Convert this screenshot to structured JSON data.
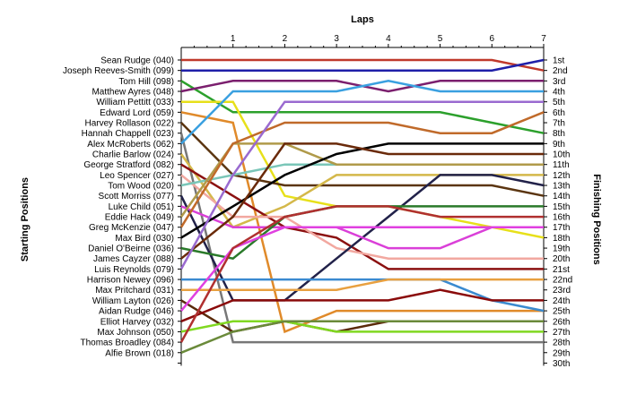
{
  "chart_data": {
    "type": "line",
    "title": "",
    "top_axis_label": "Laps",
    "left_axis_label": "Starting Positions",
    "right_axis_label": "Finishing Positions",
    "x": [
      0,
      1,
      2,
      3,
      4,
      5,
      6,
      7
    ],
    "x_tick_labels": [
      "1",
      "2",
      "3",
      "4",
      "5",
      "6",
      "7"
    ],
    "finishing_labels": [
      "1st",
      "2nd",
      "3rd",
      "4th",
      "5th",
      "6th",
      "7th",
      "8th",
      "9th",
      "10th",
      "11th",
      "12th",
      "13th",
      "14th",
      "15th",
      "16th",
      "17th",
      "18th",
      "19th",
      "20th",
      "21st",
      "22nd",
      "23rd",
      "24th",
      "25th",
      "26th",
      "27th",
      "28th",
      "29th",
      "30th"
    ],
    "ylim": [
      1,
      30
    ],
    "series": [
      {
        "name": "Sean Rudge (040)",
        "color": "#c0392b",
        "positions": [
          1,
          1,
          1,
          1,
          1,
          1,
          1,
          2
        ]
      },
      {
        "name": "Joseph Reeves-Smith (099)",
        "color": "#1f1fa8",
        "positions": [
          2,
          2,
          2,
          2,
          2,
          2,
          2,
          1
        ]
      },
      {
        "name": "Tom Hill (098)",
        "color": "#2ca02c",
        "positions": [
          3,
          6,
          6,
          6,
          6,
          6,
          7,
          8
        ]
      },
      {
        "name": "Matthew Ayres (048)",
        "color": "#7b1f6e",
        "positions": [
          4,
          3,
          3,
          3,
          4,
          3,
          3,
          3
        ]
      },
      {
        "name": "William Pettitt (033)",
        "color": "#e7e01a",
        "positions": [
          5,
          5,
          14,
          15,
          15,
          16,
          17,
          18
        ]
      },
      {
        "name": "Edward Lord (059)",
        "color": "#e08a2a",
        "positions": [
          6,
          7,
          27,
          25,
          25,
          25,
          25,
          25
        ]
      },
      {
        "name": "Harvey Rollason (022)",
        "color": "#5b3510",
        "positions": [
          7,
          12,
          13,
          13,
          13,
          13,
          13,
          14
        ]
      },
      {
        "name": "Hannah Chappell (023)",
        "color": "#777777",
        "positions": [
          8,
          28,
          28,
          28,
          28,
          28,
          28,
          28
        ]
      },
      {
        "name": "Alex McRoberts (062)",
        "color": "#3aa0e0",
        "positions": [
          9,
          4,
          4,
          4,
          3,
          4,
          4,
          4
        ]
      },
      {
        "name": "Charlie Barlow (024)",
        "color": "#d4b84a",
        "positions": [
          10,
          17,
          15,
          12,
          12,
          12,
          12,
          12
        ]
      },
      {
        "name": "George Stratford (082)",
        "color": "#8b1010",
        "positions": [
          11,
          14,
          17,
          18,
          21,
          21,
          21,
          21
        ]
      },
      {
        "name": "Leo Spencer (027)",
        "color": "#f2a8a0",
        "positions": [
          12,
          16,
          16,
          19,
          20,
          20,
          20,
          20
        ]
      },
      {
        "name": "Tom Wood (020)",
        "color": "#7ac6b8",
        "positions": [
          13,
          12,
          11,
          11,
          11,
          11,
          11,
          11
        ]
      },
      {
        "name": "Scott Morriss (077)",
        "color": "#22224a",
        "positions": [
          14,
          24,
          24,
          20,
          16,
          12,
          12,
          13
        ]
      },
      {
        "name": "Luke Child (051)",
        "color": "#da3fd8",
        "positions": [
          15,
          17,
          17,
          17,
          19,
          19,
          17,
          17
        ]
      },
      {
        "name": "Eddie Hack (049)",
        "color": "#b09a4a",
        "positions": [
          16,
          9,
          9,
          11,
          11,
          11,
          11,
          11
        ]
      },
      {
        "name": "Greg McKenzie (047)",
        "color": "#c06a2a",
        "positions": [
          17,
          9,
          7,
          7,
          7,
          8,
          8,
          6
        ]
      },
      {
        "name": "Max Bird (030)",
        "color": "#000000",
        "positions": [
          18,
          15,
          12,
          10,
          9,
          9,
          9,
          9
        ]
      },
      {
        "name": "Daniel O'Beirne (036)",
        "color": "#2a7a2a",
        "positions": [
          19,
          20,
          16,
          15,
          15,
          15,
          15,
          15
        ]
      },
      {
        "name": "James Cayzer (088)",
        "color": "#6a2a0a",
        "positions": [
          20,
          16,
          9,
          9,
          10,
          10,
          10,
          10
        ]
      },
      {
        "name": "Luis Reynolds (079)",
        "color": "#9a6ad0",
        "positions": [
          21,
          12,
          5,
          5,
          5,
          5,
          5,
          5
        ]
      },
      {
        "name": "Harrison Newey (096)",
        "color": "#3a8ad0",
        "positions": [
          22,
          22,
          22,
          22,
          22,
          22,
          24,
          25
        ]
      },
      {
        "name": "Max Pritchard (031)",
        "color": "#e8a040",
        "positions": [
          23,
          23,
          23,
          23,
          22,
          22,
          22,
          22
        ]
      },
      {
        "name": "William Layton (026)",
        "color": "#5a2a0a",
        "positions": [
          24,
          27,
          26,
          27,
          26,
          26,
          26,
          26
        ]
      },
      {
        "name": "Aidan Rudge (046)",
        "color": "#e040e0",
        "positions": [
          25,
          19,
          17,
          17,
          17,
          17,
          17,
          17
        ]
      },
      {
        "name": "Elliot Harvey (032)",
        "color": "#8a0a0a",
        "positions": [
          26,
          24,
          24,
          24,
          24,
          23,
          24,
          24
        ]
      },
      {
        "name": "Max Johnson (050)",
        "color": "#80d820",
        "positions": [
          27,
          26,
          26,
          27,
          27,
          27,
          27,
          27
        ]
      },
      {
        "name": "Thomas Broadley (084)",
        "color": "#b03030",
        "positions": [
          28,
          19,
          16,
          15,
          15,
          16,
          16,
          16
        ]
      },
      {
        "name": "Alfie Brown (018)",
        "color": "#6a8a3a",
        "positions": [
          29,
          27,
          26,
          26,
          26,
          26,
          26,
          26
        ]
      }
    ],
    "starting_labels": [
      "Sean Rudge (040)",
      "Joseph Reeves-Smith (099)",
      "Tom Hill (098)",
      "Matthew Ayres (048)",
      "William Pettitt (033)",
      "Edward Lord (059)",
      "Harvey Rollason (022)",
      "Hannah Chappell (023)",
      "Alex McRoberts (062)",
      "Charlie Barlow (024)",
      "George Stratford (082)",
      "Leo Spencer (027)",
      "Tom Wood (020)",
      "Scott Morriss (077)",
      "Luke Child (051)",
      "Eddie Hack (049)",
      "Greg McKenzie (047)",
      "Max Bird (030)",
      "Daniel O'Beirne (036)",
      "James Cayzer (088)",
      "Luis Reynolds (079)",
      "Harrison Newey (096)",
      "Max Pritchard (031)",
      "William Layton (026)",
      "Aidan Rudge (046)",
      "Elliot Harvey (032)",
      "Max Johnson (050)",
      "Thomas Broadley (084)",
      "Alfie Brown (018)"
    ],
    "grid": false,
    "legend": "none"
  }
}
